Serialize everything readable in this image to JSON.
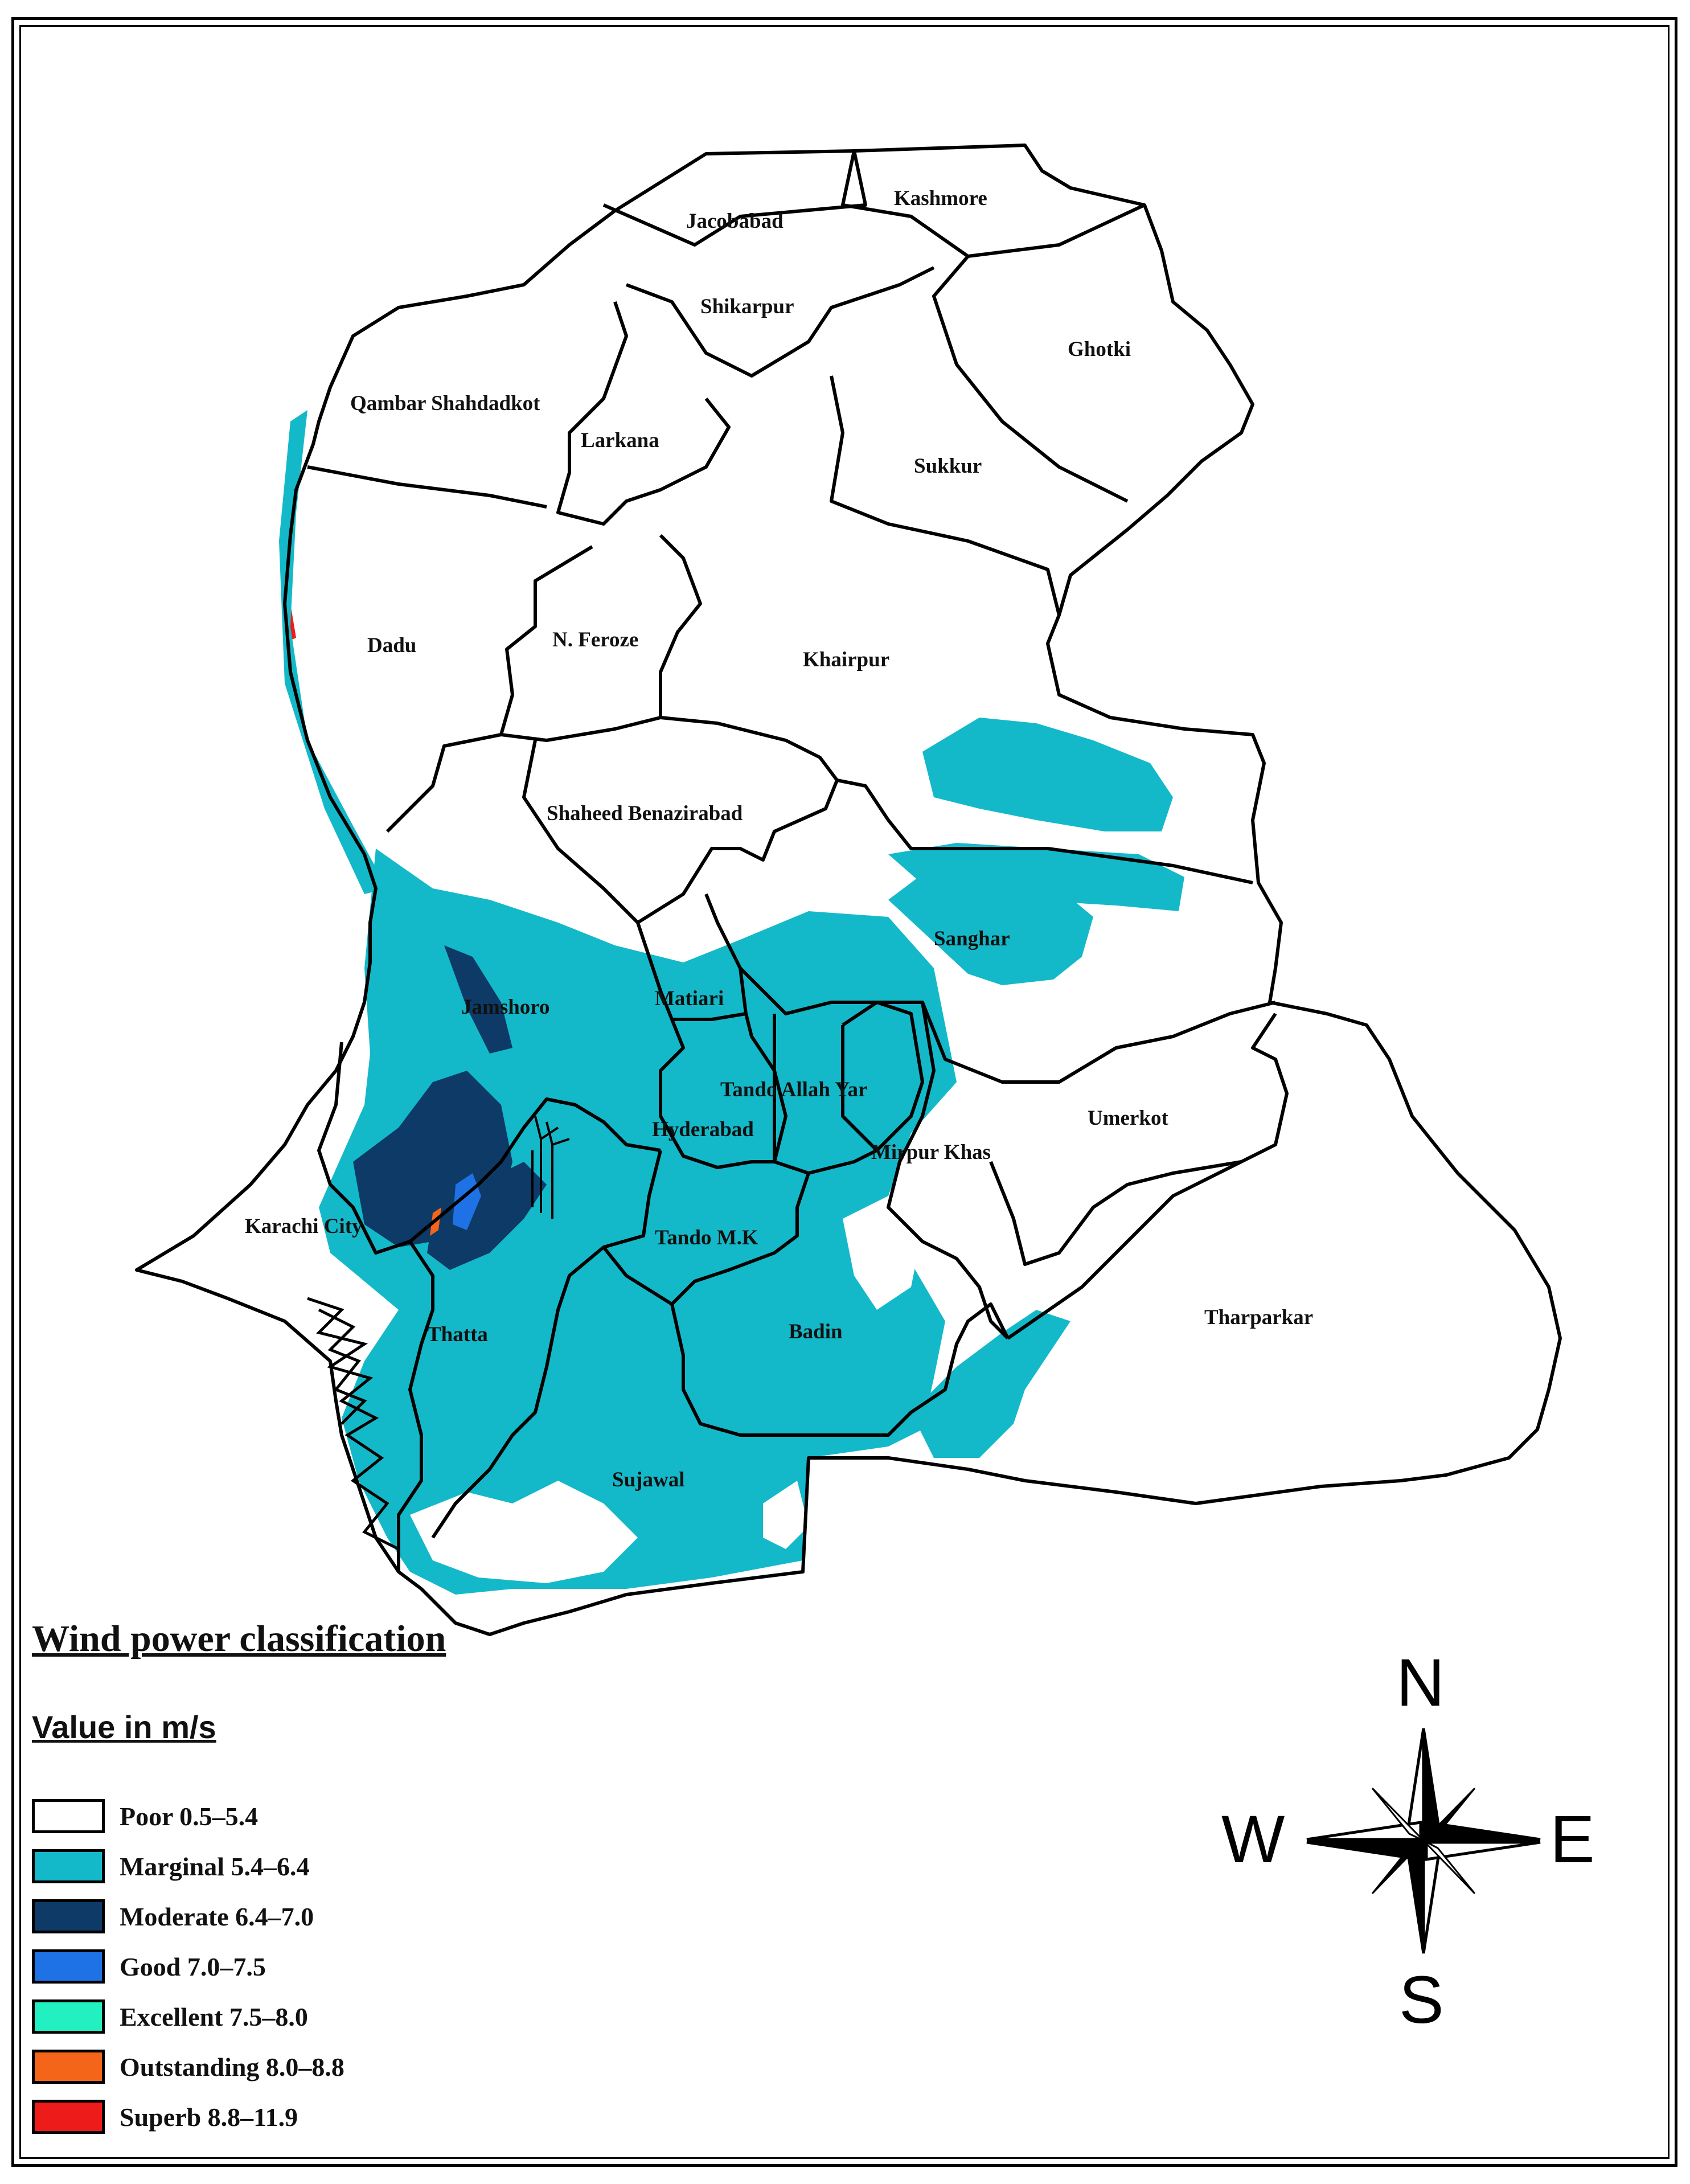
{
  "districts": [
    {
      "id": "jacobabad",
      "label": "Jacobabad"
    },
    {
      "id": "kashmore",
      "label": "Kashmore"
    },
    {
      "id": "shikarpur",
      "label": "Shikarpur"
    },
    {
      "id": "ghotki",
      "label": "Ghotki"
    },
    {
      "id": "qambar",
      "label": "Qambar Shahdadkot"
    },
    {
      "id": "larkana",
      "label": "Larkana"
    },
    {
      "id": "sukkur",
      "label": "Sukkur"
    },
    {
      "id": "dadu",
      "label": "Dadu"
    },
    {
      "id": "nferoze",
      "label": "N. Feroze"
    },
    {
      "id": "khairpur",
      "label": "Khairpur"
    },
    {
      "id": "benazirabad",
      "label": "Shaheed Benazirabad"
    },
    {
      "id": "sanghar",
      "label": "Sanghar"
    },
    {
      "id": "jamshoro",
      "label": "Jamshoro"
    },
    {
      "id": "matiari",
      "label": "Matiari"
    },
    {
      "id": "tandoallahyar",
      "label": "Tando Allah Yar"
    },
    {
      "id": "hyderabad",
      "label": "Hyderabad"
    },
    {
      "id": "mirpurkhas",
      "label": "Mirpur Khas"
    },
    {
      "id": "umerkot",
      "label": "Umerkot"
    },
    {
      "id": "karachi",
      "label": "Karachi City"
    },
    {
      "id": "tandomk",
      "label": "Tando M.K"
    },
    {
      "id": "thatta",
      "label": "Thatta"
    },
    {
      "id": "badin",
      "label": "Badin"
    },
    {
      "id": "tharparkar",
      "label": "Tharparkar"
    },
    {
      "id": "sujawal",
      "label": "Sujawal"
    }
  ],
  "legend": {
    "title": "Wind power classification",
    "subtitle": "Value in m/s",
    "items": [
      {
        "label": "Poor 0.5–5.4",
        "color": "#ffffff"
      },
      {
        "label": "Marginal 5.4–6.4",
        "color": "#14b9c9"
      },
      {
        "label": "Moderate 6.4–7.0",
        "color": "#0d3a66"
      },
      {
        "label": "Good 7.0–7.5",
        "color": "#1e72e6"
      },
      {
        "label": "Excellent 7.5–8.0",
        "color": "#22f0c0"
      },
      {
        "label": "Outstanding 8.0–8.8",
        "color": "#f4651a"
      },
      {
        "label": "Superb 8.8–11.9",
        "color": "#ee1b1b"
      }
    ]
  },
  "compass": {
    "n": "N",
    "s": "S",
    "e": "E",
    "w": "W"
  }
}
